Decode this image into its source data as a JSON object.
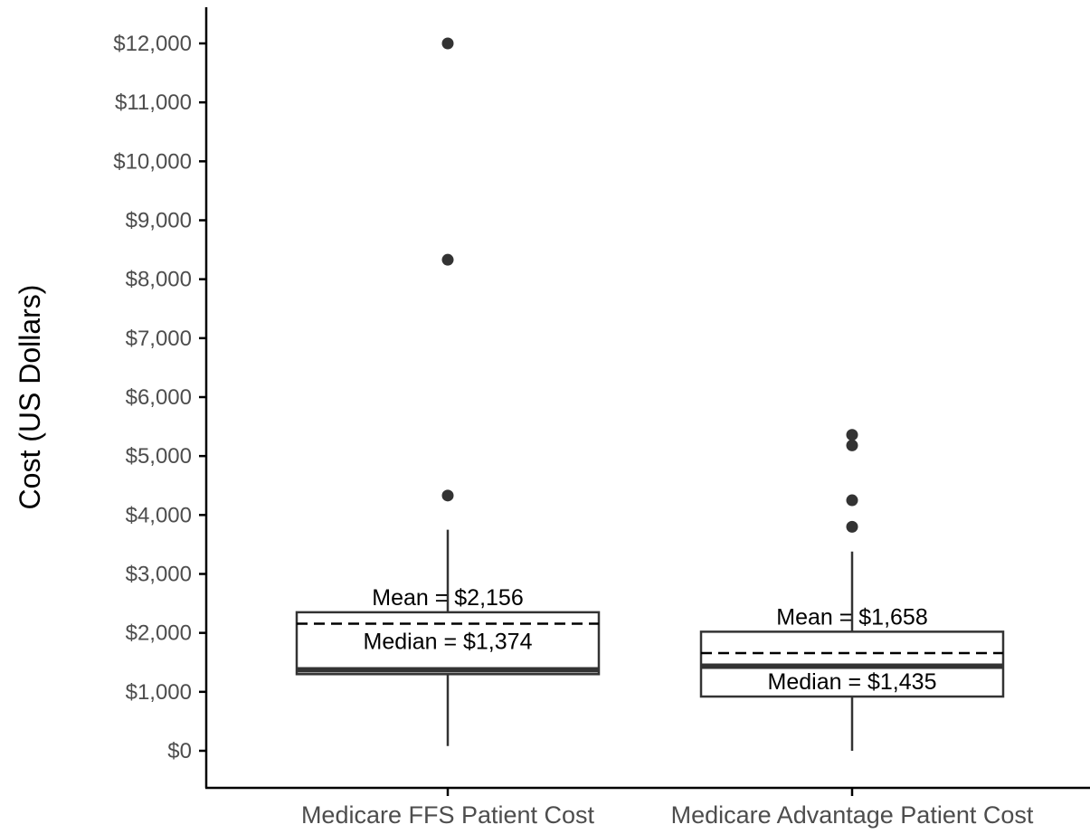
{
  "chart_data": {
    "type": "box",
    "title": "",
    "xlabel": "",
    "ylabel": "Cost (US Dollars)",
    "ylim": [
      -600,
      12600
    ],
    "y_ticks": [
      0,
      1000,
      2000,
      3000,
      4000,
      5000,
      6000,
      7000,
      8000,
      9000,
      10000,
      11000,
      12000
    ],
    "y_tick_labels": [
      "$0",
      "$1,000",
      "$2,000",
      "$3,000",
      "$4,000",
      "$5,000",
      "$6,000",
      "$7,000",
      "$8,000",
      "$9,000",
      "$10,000",
      "$11,000",
      "$12,000"
    ],
    "grid": false,
    "categories": [
      "Medicare FFS Patient Cost",
      "Medicare Advantage Patient Cost"
    ],
    "boxes": [
      {
        "category": "Medicare FFS Patient Cost",
        "whisker_low": 80,
        "q1": 1300,
        "median": 1374,
        "q3": 2350,
        "whisker_high": 3750,
        "mean": 2156,
        "outliers": [
          4330,
          8330,
          12000
        ],
        "mean_label": "Mean = $2,156",
        "median_label": "Median = $1,374"
      },
      {
        "category": "Medicare Advantage Patient Cost",
        "whisker_low": 0,
        "q1": 920,
        "median": 1435,
        "q3": 2020,
        "whisker_high": 3380,
        "mean": 1658,
        "outliers": [
          3800,
          4250,
          5180,
          5360
        ],
        "mean_label": "Mean = $1,658",
        "median_label": "Median = $1,435"
      }
    ]
  }
}
